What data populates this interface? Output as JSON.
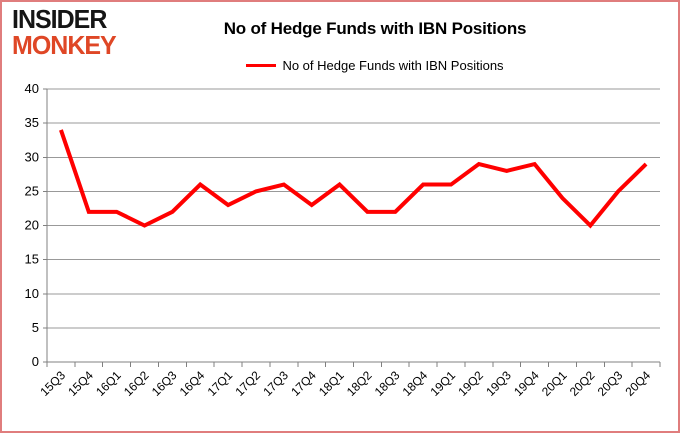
{
  "logo": {
    "line1": "INSIDER",
    "line2": "MONKEY"
  },
  "header": {
    "title": "No of Hedge Funds with IBN Positions"
  },
  "legend": {
    "label": "No of Hedge Funds with IBN Positions"
  },
  "colors": {
    "line": "#ff0000",
    "grid": "#999999",
    "axis": "#808080",
    "page_border": "#e07d7d",
    "logo_red": "#df4726",
    "text": "#000000"
  },
  "chart_data": {
    "type": "line",
    "title": "No of Hedge Funds with IBN Positions",
    "categories": [
      "15Q3",
      "15Q4",
      "16Q1",
      "16Q2",
      "16Q3",
      "16Q4",
      "17Q1",
      "17Q2",
      "17Q3",
      "17Q4",
      "18Q1",
      "18Q2",
      "18Q3",
      "18Q4",
      "19Q1",
      "19Q2",
      "19Q3",
      "19Q4",
      "20Q1",
      "20Q2",
      "20Q3",
      "20Q4"
    ],
    "series": [
      {
        "name": "No of Hedge Funds with IBN Positions",
        "color": "#ff0000",
        "values": [
          34,
          22,
          22,
          20,
          22,
          26,
          23,
          25,
          26,
          23,
          26,
          22,
          22,
          26,
          26,
          29,
          28,
          29,
          24,
          20,
          25,
          29
        ]
      }
    ],
    "xlabel": "",
    "ylabel": "",
    "ylim": [
      0,
      40
    ],
    "ytick_step": 5,
    "y_ticks": [
      0,
      5,
      10,
      15,
      20,
      25,
      30,
      35,
      40
    ],
    "grid": true,
    "legend_position": "top"
  }
}
